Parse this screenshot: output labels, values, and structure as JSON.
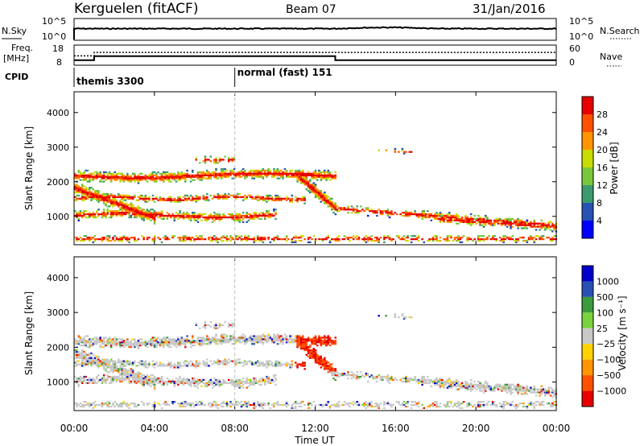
{
  "header": {
    "station": "Kerguelen (fitACF)",
    "beam": "Beam 07",
    "date": "31/Jan/2016"
  },
  "colors": {
    "power_scale": [
      "#0000ff",
      "#2851b4",
      "#3c9b6e",
      "#78c83c",
      "#c8dc00",
      "#ff9600",
      "#ff5000",
      "#e60000"
    ],
    "velocity_scale": [
      "#0000c8",
      "#2850b4",
      "#3c9b3c",
      "#78d23c",
      "#c8c8c8",
      "#ffd200",
      "#ff9600",
      "#ff5000",
      "#e60000"
    ],
    "ground_scatter": "#c8c8c8"
  },
  "chart_data": [
    {
      "type": "line",
      "name": "status-strip",
      "labels": {
        "nsky": "N.Sky",
        "nsearch": "N.Search",
        "freq": "Freq.\n[MHz]",
        "nave": "Nave",
        "cpid": "CPID",
        "nsky_ticks": [
          "10^5",
          "10^0"
        ],
        "nsearch_ticks": [
          "10^5",
          "10^0"
        ],
        "freq_ticks": [
          "18",
          "8"
        ],
        "nave_ticks": [
          "60",
          "0"
        ]
      },
      "freq_steps": [
        {
          "t": 0,
          "v": 10.5
        },
        {
          "t": 1.0,
          "v": 12.5
        },
        {
          "t": 13.0,
          "v": 10.5
        },
        {
          "t": 24,
          "v": 10.5
        }
      ],
      "nave_steps": [
        {
          "t": 0,
          "v": 28
        },
        {
          "t": 1.0,
          "v": 38
        },
        {
          "t": 24,
          "v": 38
        }
      ],
      "cpid_segments": [
        {
          "start": 0,
          "label": "themis 3300"
        },
        {
          "start": 8.0,
          "label": "normal (fast) 151"
        }
      ]
    },
    {
      "type": "heatmap",
      "name": "power",
      "ylabel": "Slant Range [km]",
      "yticks": [
        1000,
        2000,
        3000,
        4000
      ],
      "ylim": [
        180,
        4600
      ],
      "xlim": [
        0,
        24
      ],
      "colorbar_label": "Power [dB]",
      "colorbar_ticks": [
        "4",
        "8",
        "12",
        "16",
        "20",
        "24",
        "28"
      ],
      "colorbar_range": [
        0,
        32
      ]
    },
    {
      "type": "heatmap",
      "name": "velocity",
      "xlabel": "Time UT",
      "ylabel": "Slant Range [km]",
      "xticks": [
        "00:00",
        "04:00",
        "08:00",
        "12:00",
        "16:00",
        "20:00",
        "00:00"
      ],
      "yticks": [
        1000,
        2000,
        3000,
        4000
      ],
      "ylim": [
        180,
        4600
      ],
      "xlim": [
        0,
        24
      ],
      "colorbar_label": "Velocity [m s⁻¹]",
      "colorbar_ticks": [
        "1000",
        "500",
        "100",
        "25",
        "−25",
        "−100",
        "−500",
        "−1000"
      ]
    }
  ]
}
